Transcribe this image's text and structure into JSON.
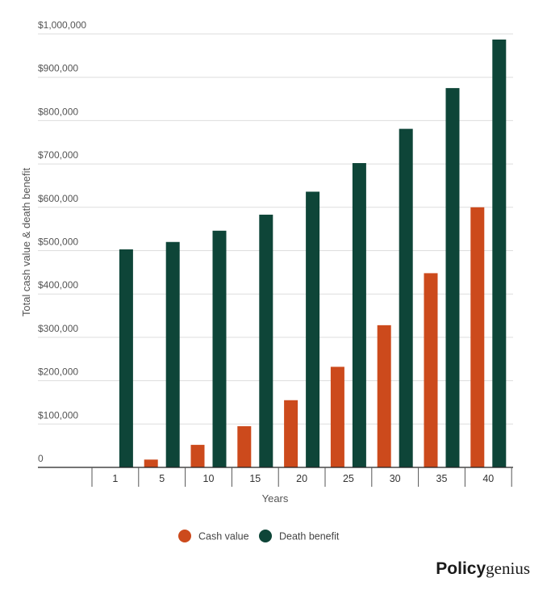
{
  "chart_data": {
    "type": "bar",
    "categories": [
      "1",
      "5",
      "10",
      "15",
      "20",
      "25",
      "30",
      "35",
      "40"
    ],
    "series": [
      {
        "name": "Cash value",
        "color": "#cc4a1c",
        "values": [
          0,
          18000,
          52000,
          95000,
          155000,
          232000,
          328000,
          448000,
          600000
        ]
      },
      {
        "name": "Death benefit",
        "color": "#0e4538",
        "values": [
          503000,
          520000,
          546000,
          583000,
          636000,
          702000,
          781000,
          875000,
          987000
        ]
      }
    ],
    "yticks": [
      "0",
      "$100,000",
      "$200,000",
      "$300,000",
      "$400,000",
      "$500,000",
      "$600,000",
      "$700,000",
      "$800,000",
      "$900,000",
      "$1,000,000"
    ],
    "ylim": [
      0,
      1000000
    ],
    "xlabel": "Years",
    "ylabel": "Total cash value & death benefit",
    "grid": true,
    "legend": "bottom-center"
  },
  "brand": {
    "part1": "Policy",
    "part2": "genius"
  }
}
